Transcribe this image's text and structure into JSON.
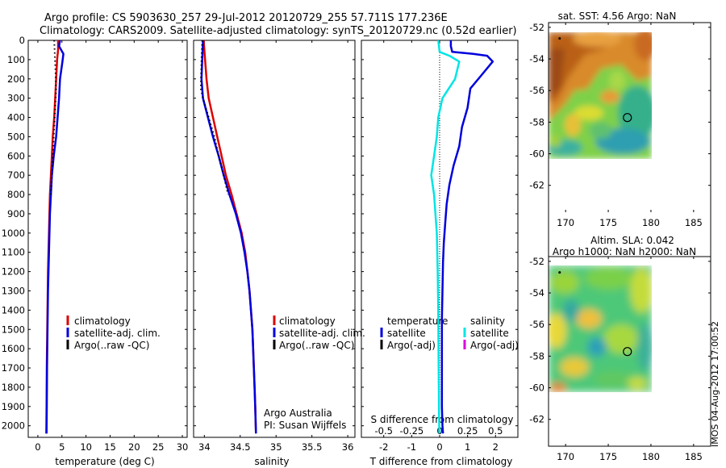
{
  "header": {
    "title_line1": "Argo profile: CS 5903630_257 29-Jul-2012 20120729_255 57.711S 177.236E",
    "title_line2": "Climatology: CARS2009. Satellite-adjusted climatology: synTS_20120729.nc (0.52d earlier)"
  },
  "footer": {
    "stamp": "IMOS 04-Aug-2012 17:00:52"
  },
  "colors": {
    "climatology": "#dd0000",
    "satellite": "#0000dd",
    "argo": "#000000",
    "sal_satellite": "#00e5e5",
    "sal_argo": "#dd00dd",
    "map_land": "#ffffff"
  },
  "chart_data": [
    {
      "type": "line",
      "panel": "temperature",
      "xlabel": "temperature (deg C)",
      "xlim": [
        -2,
        31
      ],
      "xticks": [
        0,
        5,
        10,
        15,
        20,
        25,
        30
      ],
      "ylim": [
        2060,
        0
      ],
      "yticks": [
        0,
        100,
        200,
        300,
        400,
        500,
        600,
        700,
        800,
        900,
        1000,
        1100,
        1200,
        1300,
        1400,
        1500,
        1600,
        1700,
        1800,
        1900,
        2000
      ],
      "legend": [
        "climatology",
        "satellite-adj. clim.",
        "Argo(..raw -QC)"
      ],
      "series": [
        {
          "name": "climatology",
          "style": "solid",
          "color": "#dd0000",
          "x": [
            4.2,
            4.2,
            4.0,
            3.8,
            3.6,
            3.4,
            3.1,
            2.9,
            2.7,
            2.5,
            2.4,
            2.3,
            2.2,
            2.1,
            2.05,
            2.0,
            1.95,
            1.9,
            1.85,
            1.8,
            1.75
          ],
          "y": [
            0,
            50,
            100,
            200,
            300,
            400,
            500,
            600,
            700,
            800,
            900,
            1000,
            1100,
            1200,
            1300,
            1400,
            1500,
            1600,
            1700,
            1900,
            2040
          ]
        },
        {
          "name": "satellite-adj. clim.",
          "style": "solid",
          "color": "#0000dd",
          "x": [
            4.6,
            4.4,
            5.3,
            5.1,
            4.6,
            4.4,
            4.1,
            3.8,
            3.3,
            2.9,
            2.7,
            2.5,
            2.4,
            2.3,
            2.2,
            2.1,
            2.05,
            2.0,
            1.95,
            1.9,
            1.85,
            1.8
          ],
          "y": [
            0,
            30,
            70,
            110,
            200,
            300,
            400,
            500,
            600,
            700,
            800,
            900,
            1000,
            1100,
            1200,
            1300,
            1400,
            1500,
            1600,
            1700,
            1900,
            2040
          ]
        },
        {
          "name": "Argo(..raw -QC)",
          "style": "dotted",
          "color": "#000000",
          "x": [
            3.4,
            3.5,
            3.6,
            3.7,
            3.8,
            3.7,
            3.5,
            3.3,
            3.1,
            2.9,
            2.7
          ],
          "y": [
            0,
            60,
            120,
            180,
            250,
            300,
            400,
            500,
            600,
            700,
            800
          ]
        }
      ]
    },
    {
      "type": "line",
      "panel": "salinity",
      "xlabel": "salinity",
      "xlim": [
        33.85,
        36.1
      ],
      "xticks": [
        34,
        34.5,
        35,
        35.5,
        36
      ],
      "ylim": [
        2060,
        0
      ],
      "legend": [
        "climatology",
        "satellite-adj. clim.",
        "Argo(..raw -QC)"
      ],
      "annotations": [
        "Argo Australia",
        "PI: Susan Wijffels"
      ],
      "series": [
        {
          "name": "climatology",
          "style": "solid",
          "color": "#dd0000",
          "x": [
            33.99,
            34.01,
            34.03,
            34.06,
            34.12,
            34.18,
            34.24,
            34.3,
            34.38,
            34.45,
            34.52,
            34.57,
            34.6,
            34.63,
            34.65,
            34.67,
            34.68,
            34.69,
            34.7,
            34.71,
            34.72
          ],
          "y": [
            0,
            100,
            200,
            300,
            400,
            500,
            600,
            700,
            800,
            900,
            1000,
            1100,
            1200,
            1300,
            1400,
            1500,
            1600,
            1700,
            1800,
            1900,
            2040
          ]
        },
        {
          "name": "satellite-adj. clim.",
          "style": "solid",
          "color": "#0000dd",
          "x": [
            33.98,
            33.97,
            33.96,
            33.98,
            34.05,
            34.12,
            34.2,
            34.27,
            34.35,
            34.44,
            34.51,
            34.56,
            34.6,
            34.63,
            34.65,
            34.67,
            34.68,
            34.69,
            34.7,
            34.71,
            34.72
          ],
          "y": [
            0,
            100,
            200,
            300,
            400,
            500,
            600,
            700,
            800,
            900,
            1000,
            1100,
            1200,
            1300,
            1400,
            1500,
            1600,
            1700,
            1800,
            1900,
            2040
          ]
        },
        {
          "name": "Argo(..raw -QC)",
          "style": "dotted",
          "color": "#000000",
          "x": [
            33.97,
            33.96,
            33.95,
            33.98,
            34.06,
            34.14,
            34.2,
            34.27,
            34.33
          ],
          "y": [
            0,
            100,
            250,
            300,
            400,
            500,
            600,
            700,
            800
          ]
        }
      ]
    },
    {
      "type": "line",
      "panel": "difference",
      "xlabel": "T difference from climatology",
      "xlim": [
        -2.8,
        2.8
      ],
      "xticks": [
        -2,
        -1,
        0,
        1,
        2
      ],
      "top_axis_label": "S difference from climatology",
      "top_ticks": [
        -0.5,
        -0.25,
        0,
        0.25,
        0.5
      ],
      "top_range": [
        -0.7,
        0.7
      ],
      "ylim": [
        2060,
        0
      ],
      "legend_title": [
        "temperature",
        "salinity"
      ],
      "legend": [
        "satellite",
        "Argo(-adj)",
        "satellite",
        "Argo(-adj)"
      ],
      "series": [
        {
          "name": "satellite",
          "quantity": "temperature",
          "style": "solid",
          "color": "#0000dd",
          "x": [
            0.4,
            0.4,
            0.45,
            1.2,
            1.7,
            1.9,
            1.5,
            1.1,
            1.0,
            0.8,
            0.7,
            0.5,
            0.35,
            0.25,
            0.2,
            0.15,
            0.12,
            0.1,
            0.08,
            0.08,
            0.08,
            0.08,
            0.1,
            0.12
          ],
          "y": [
            0,
            30,
            60,
            70,
            80,
            110,
            180,
            250,
            350,
            450,
            550,
            650,
            750,
            850,
            950,
            1050,
            1150,
            1300,
            1450,
            1600,
            1750,
            1900,
            2000,
            2040
          ]
        },
        {
          "name": "satellite",
          "quantity": "salinity",
          "style": "solid",
          "color": "#00e5e5",
          "x": [
            -0.05,
            0.0,
            0.35,
            0.7,
            0.55,
            0.1,
            -0.05,
            -0.1,
            -0.2,
            -0.3,
            -0.2,
            -0.15,
            -0.1,
            -0.07,
            -0.05,
            -0.04,
            -0.03,
            -0.02,
            -0.01
          ],
          "y": [
            0,
            60,
            80,
            110,
            200,
            300,
            400,
            500,
            600,
            700,
            800,
            900,
            1000,
            1200,
            1400,
            1600,
            1800,
            1950,
            2040
          ]
        }
      ]
    },
    {
      "type": "heatmap",
      "panel": "sst-map",
      "title": "sat. SST: 4.56 Argo: NaN",
      "xlim": [
        168,
        187
      ],
      "xticks": [
        170,
        175,
        180,
        185
      ],
      "ylim": [
        -63.7,
        -51.7
      ],
      "yticks": [
        -52,
        -54,
        -56,
        -58,
        -60,
        -62
      ],
      "data_extent": {
        "lon": [
          168,
          179
        ],
        "lat": [
          -60,
          -51.7
        ]
      },
      "markers": [
        {
          "kind": "circle",
          "lon": 177.24,
          "lat": -57.71
        },
        {
          "kind": "dot",
          "lon": 169.3,
          "lat": -52.7
        }
      ]
    },
    {
      "type": "heatmap",
      "panel": "sla-map",
      "title": "Altim. SLA: 0.042",
      "title_line2": "Argo h1000: NaN h2000: NaN",
      "xlim": [
        168,
        187
      ],
      "xticks": [
        170,
        175,
        180,
        185
      ],
      "ylim": [
        -63.7,
        -51.7
      ],
      "yticks": [
        -52,
        -54,
        -56,
        -58,
        -60,
        -62
      ],
      "data_extent": {
        "lon": [
          168,
          179
        ],
        "lat": [
          -60,
          -51.7
        ]
      },
      "markers": [
        {
          "kind": "circle",
          "lon": 177.24,
          "lat": -57.71
        },
        {
          "kind": "dot",
          "lon": 169.3,
          "lat": -52.7
        }
      ]
    }
  ]
}
